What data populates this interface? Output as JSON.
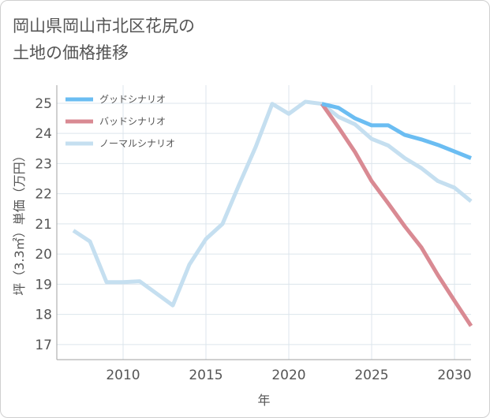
{
  "title": "岡山県岡山市北区花尻の\n土地の価格推移",
  "colors": {
    "good": "#6bbdf2",
    "bad": "#d98a93",
    "normal": "#c5dff0",
    "grid": "#dce5ec",
    "axis": "#a0a0a0",
    "text": "#555555"
  },
  "chart_data": {
    "type": "line",
    "xlabel": "年",
    "ylabel": "坪（3.3㎡）単価（万円）",
    "xlim": [
      2006,
      2031
    ],
    "ylim": [
      16.5,
      25.6
    ],
    "x_ticks": [
      2010,
      2015,
      2020,
      2025,
      2030
    ],
    "y_ticks": [
      17,
      18,
      19,
      20,
      21,
      22,
      23,
      24,
      25
    ],
    "grid": true,
    "legend_position": "top-left",
    "series": [
      {
        "name": "グッドシナリオ",
        "color": "#6bbdf2",
        "x": [
          2022,
          2023,
          2024,
          2025,
          2026,
          2027,
          2028,
          2029,
          2030,
          2031
        ],
        "y": [
          24.98,
          24.85,
          24.5,
          24.27,
          24.27,
          23.95,
          23.8,
          23.62,
          23.4,
          23.18
        ]
      },
      {
        "name": "バッドシナリオ",
        "color": "#d98a93",
        "x": [
          2022,
          2023,
          2024,
          2025,
          2026,
          2027,
          2028,
          2029,
          2030,
          2031
        ],
        "y": [
          24.98,
          24.2,
          23.38,
          22.42,
          21.68,
          20.92,
          20.22,
          19.3,
          18.45,
          17.62
        ]
      },
      {
        "name": "ノーマルシナリオ",
        "color": "#c5dff0",
        "x": [
          2007,
          2008,
          2009,
          2010,
          2011,
          2012,
          2013,
          2014,
          2015,
          2016,
          2017,
          2018,
          2019,
          2020,
          2021,
          2022,
          2023,
          2024,
          2025,
          2026,
          2027,
          2028,
          2029,
          2030,
          2031
        ],
        "y": [
          20.78,
          20.42,
          19.07,
          19.07,
          19.1,
          18.7,
          18.3,
          19.65,
          20.5,
          21.0,
          22.3,
          23.55,
          24.98,
          24.65,
          25.05,
          24.98,
          24.55,
          24.3,
          23.82,
          23.6,
          23.18,
          22.85,
          22.42,
          22.2,
          21.75
        ]
      }
    ]
  }
}
